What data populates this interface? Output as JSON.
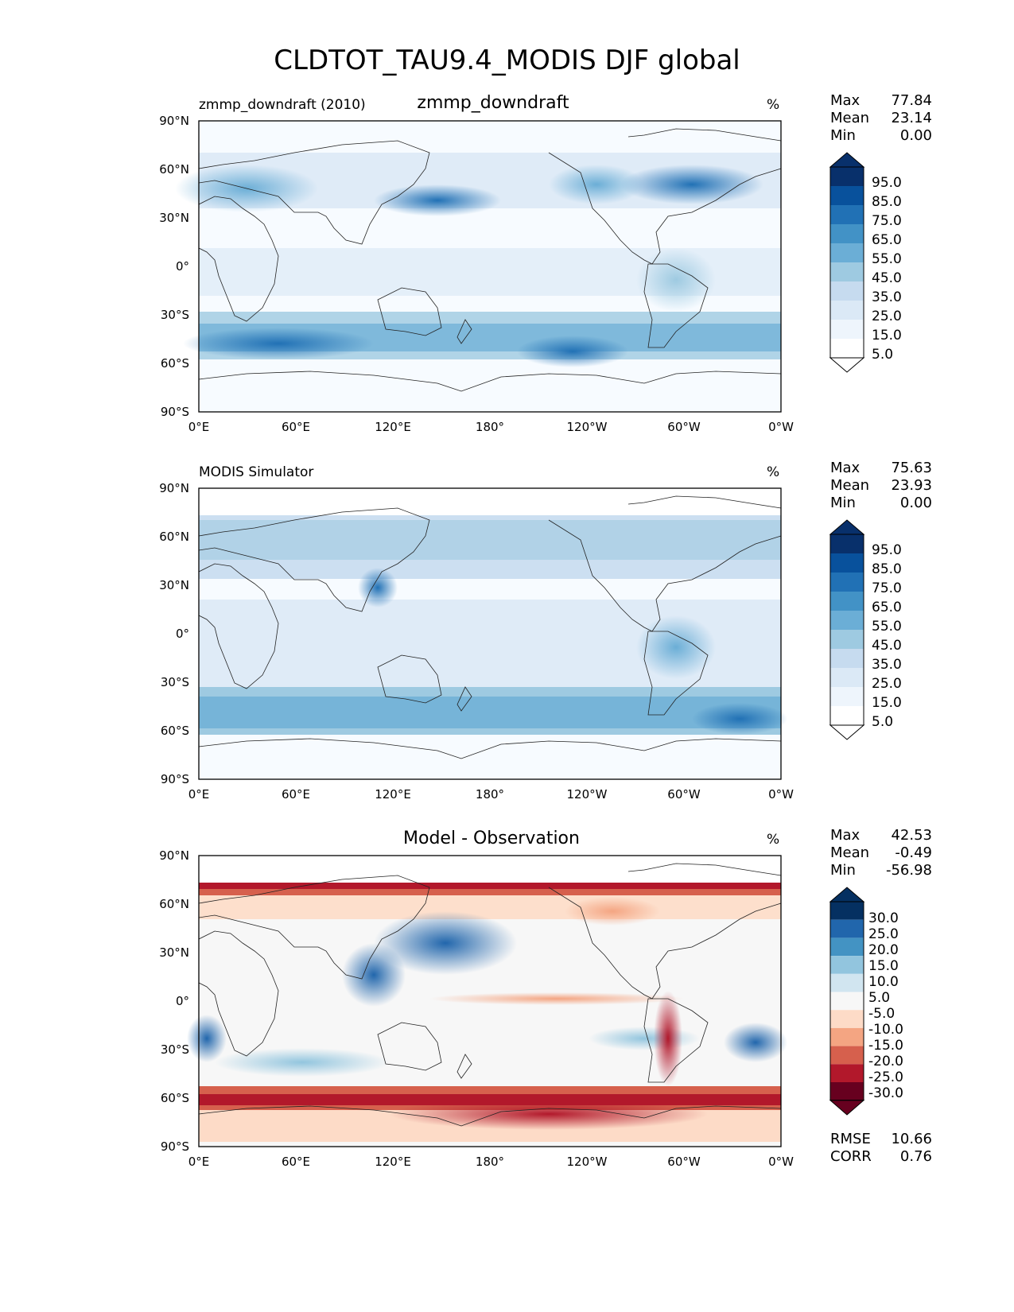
{
  "title": "CLDTOT_TAU9.4_MODIS DJF global",
  "lat_ticks": [
    "90°N",
    "60°N",
    "30°N",
    "0°",
    "30°S",
    "60°S",
    "90°S"
  ],
  "lon_ticks": [
    "0°E",
    "60°E",
    "120°E",
    "180°",
    "120°W",
    "60°W",
    "0°W"
  ],
  "panels": [
    {
      "left_label": "zmmp_downdraft (2010)",
      "center_title": "zmmp_downdraft",
      "units": "%",
      "stats": {
        "max_label": "Max",
        "max": "77.84",
        "mean_label": "Mean",
        "mean": "23.14",
        "min_label": "Min",
        "min": "0.00"
      },
      "colorbar": {
        "ticks": [
          "95.0",
          "85.0",
          "75.0",
          "65.0",
          "55.0",
          "45.0",
          "35.0",
          "25.0",
          "15.0",
          "5.0"
        ],
        "colors": [
          "#08306b",
          "#08519c",
          "#2171b5",
          "#4292c6",
          "#6baed6",
          "#9ecae1",
          "#c6dbef",
          "#dbe9f6",
          "#eef5fc",
          "#ffffff"
        ]
      }
    },
    {
      "left_label": "MODIS Simulator",
      "center_title": "",
      "units": "%",
      "stats": {
        "max_label": "Max",
        "max": "75.63",
        "mean_label": "Mean",
        "mean": "23.93",
        "min_label": "Min",
        "min": "0.00"
      },
      "colorbar": {
        "ticks": [
          "95.0",
          "85.0",
          "75.0",
          "65.0",
          "55.0",
          "45.0",
          "35.0",
          "25.0",
          "15.0",
          "5.0"
        ],
        "colors": [
          "#08306b",
          "#08519c",
          "#2171b5",
          "#4292c6",
          "#6baed6",
          "#9ecae1",
          "#c6dbef",
          "#dbe9f6",
          "#eef5fc",
          "#ffffff"
        ]
      }
    },
    {
      "left_label": "",
      "center_title": "Model - Observation",
      "units": "%",
      "stats": {
        "max_label": "Max",
        "max": "42.53",
        "mean_label": "Mean",
        "mean": "-0.49",
        "min_label": "Min",
        "min": "-56.98"
      },
      "colorbar": {
        "ticks": [
          "30.0",
          "25.0",
          "20.0",
          "15.0",
          "10.0",
          "5.0",
          "-5.0",
          "-10.0",
          "-15.0",
          "-20.0",
          "-25.0",
          "-30.0"
        ],
        "colors": [
          "#053061",
          "#2166ac",
          "#4393c3",
          "#92c5de",
          "#d1e5f0",
          "#f7f7f7",
          "#fddbc7",
          "#f4a582",
          "#d6604d",
          "#b2182b",
          "#67001f"
        ]
      },
      "rmse_label": "RMSE",
      "rmse": "10.66",
      "corr_label": "CORR",
      "corr": "0.76"
    }
  ]
}
